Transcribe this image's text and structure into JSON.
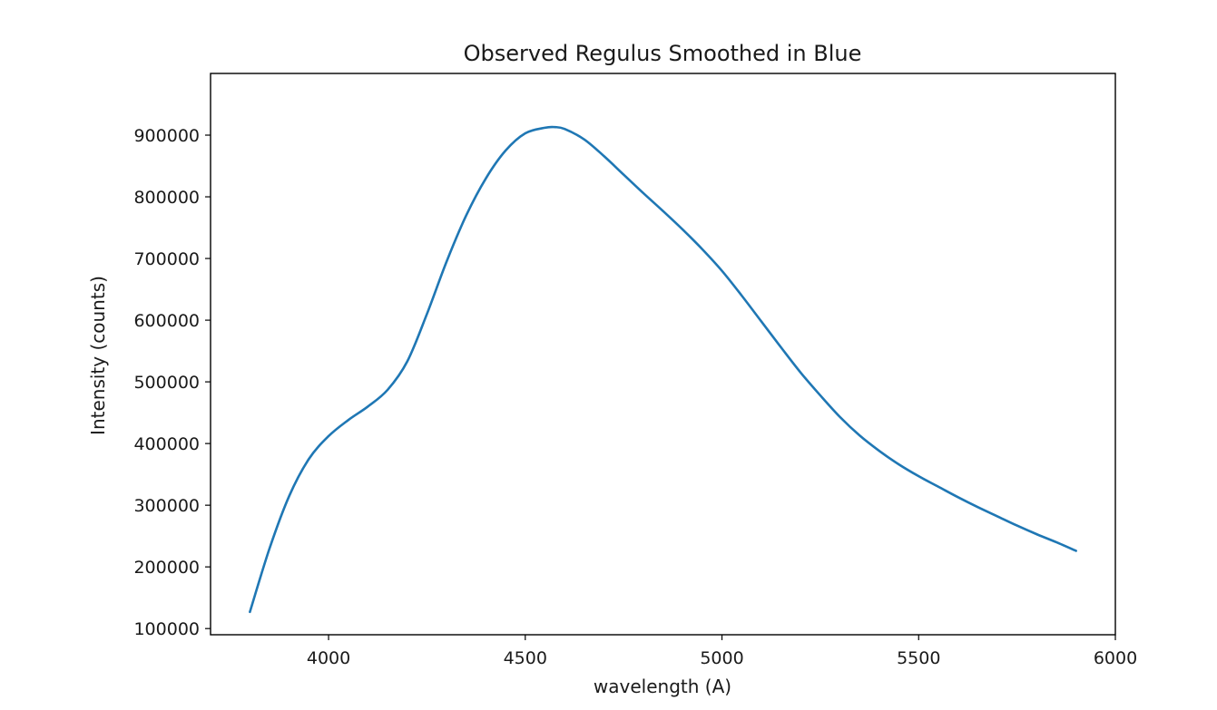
{
  "chart_data": {
    "type": "line",
    "title": "Observed Regulus Smoothed in Blue",
    "xlabel": "wavelength (A)",
    "ylabel": "Intensity (counts)",
    "xlim": [
      3700,
      6000
    ],
    "ylim": [
      90000,
      1000000
    ],
    "xticks": [
      4000,
      4500,
      5000,
      5500,
      6000
    ],
    "yticks": [
      100000,
      200000,
      300000,
      400000,
      500000,
      600000,
      700000,
      800000,
      900000
    ],
    "grid": false,
    "series": [
      {
        "color": "#1f77b4",
        "x": [
          3800,
          3850,
          3900,
          3950,
          4000,
          4050,
          4100,
          4150,
          4200,
          4250,
          4300,
          4350,
          4400,
          4450,
          4500,
          4550,
          4575,
          4600,
          4650,
          4700,
          4750,
          4800,
          4850,
          4900,
          4950,
          5000,
          5050,
          5100,
          5150,
          5200,
          5250,
          5300,
          5350,
          5400,
          5450,
          5500,
          5550,
          5600,
          5650,
          5700,
          5750,
          5800,
          5850,
          5900
        ],
        "y": [
          127000,
          230000,
          315000,
          375000,
          412000,
          438000,
          460000,
          487000,
          533000,
          610000,
          695000,
          770000,
          830000,
          875000,
          903000,
          912000,
          913000,
          910000,
          893000,
          866000,
          836000,
          806000,
          777000,
          747000,
          715000,
          680000,
          640000,
          598000,
          556000,
          515000,
          478000,
          443000,
          413000,
          388000,
          366000,
          347000,
          330000,
          313000,
          297000,
          282000,
          267000,
          253000,
          240000,
          226000
        ]
      }
    ]
  }
}
